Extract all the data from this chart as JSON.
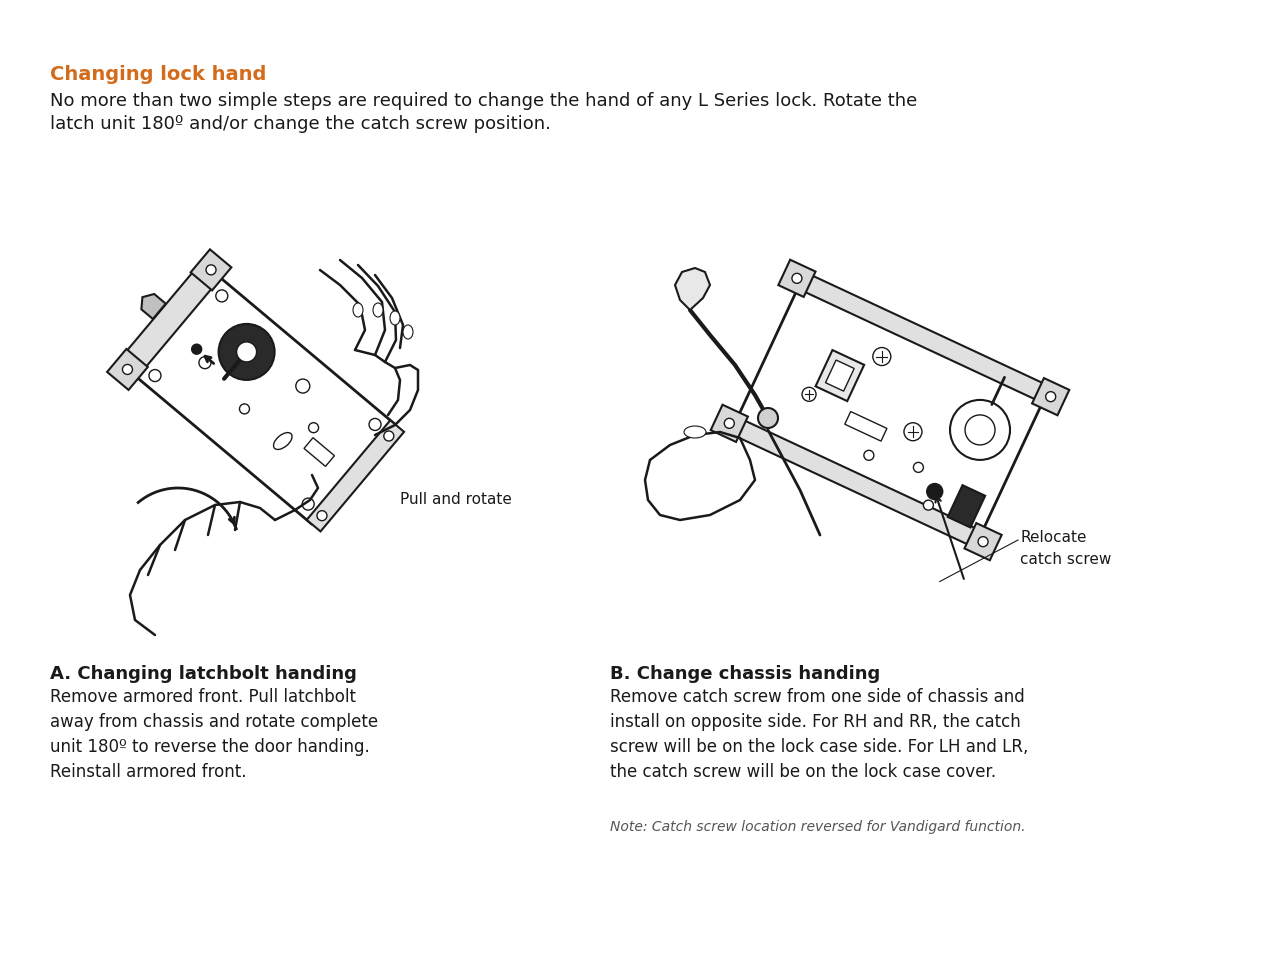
{
  "bg_color": "#ffffff",
  "title": "Changing lock hand",
  "title_color": "#d46b1a",
  "subtitle_line1": "No more than two simple steps are required to change the hand of any L Series lock. Rotate the",
  "subtitle_line2": "latch unit 180º and/or change the catch screw position.",
  "subtitle_color": "#1a1a1a",
  "label_a_title": "A. Changing latchbolt handing",
  "label_a_body": "Remove armored front. Pull latchbolt\naway from chassis and rotate complete\nunit 180º to reverse the door handing.\nReinstall armored front.",
  "label_b_title": "B. Change chassis handing",
  "label_b_body": "Remove catch screw from one side of chassis and\ninstall on opposite side. For RH and RR, the catch\nscrew will be on the lock case side. For LH and LR,\nthe catch screw will be on the lock case cover.",
  "note": "Note: Catch screw location reversed for Vandigard function.",
  "annotation_a": "Pull and rotate",
  "annotation_b_line1": "Relocate",
  "annotation_b_line2": "catch screw",
  "line_color": "#1a1a1a",
  "title_fontsize": 14,
  "subtitle_fontsize": 13,
  "body_fontsize": 12,
  "note_fontsize": 10,
  "ann_fontsize": 11
}
